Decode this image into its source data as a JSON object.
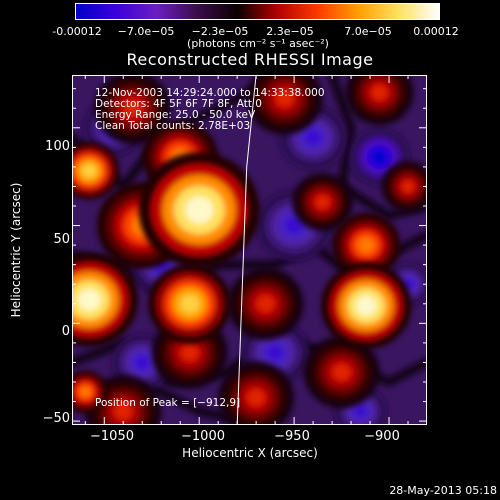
{
  "colorbar": {
    "ticks": [
      "-0.00012",
      "−7.0e−05",
      "−2.3e−05",
      "2.3e−05",
      "7.0e−05",
      "0.00012"
    ],
    "units": "(photons cm⁻² s⁻¹ asec⁻²)",
    "colors": [
      "#0000c8",
      "#3c00dc",
      "#6a1fbf",
      "#3a0d4a",
      "#0a0000",
      "#b40000",
      "#ff3a00",
      "#ffa000",
      "#ffe060",
      "#ffffff"
    ]
  },
  "chart_data": {
    "type": "heatmap",
    "title": "Reconstructed RHESSI Image",
    "xlabel": "Heliocentric X (arcsec)",
    "ylabel": "Heliocentric Y (arcsec)",
    "xlim": [
      -1067,
      -880
    ],
    "ylim": [
      -52,
      127
    ],
    "x_ticks": [
      "−1050",
      "−1000",
      "−950",
      "−900"
    ],
    "y_ticks": [
      "100",
      "50",
      "0",
      "−50"
    ],
    "x_tick_values": [
      -1050,
      -1000,
      -950,
      -900
    ],
    "y_tick_values": [
      100,
      50,
      0,
      -50
    ],
    "color_range": [
      -0.00012,
      0.00012
    ],
    "limb_line": [
      [
        -970,
        127
      ],
      [
        -975,
        80
      ],
      [
        -980,
        -52
      ]
    ],
    "sources": [
      {
        "x": -1000,
        "y": 58,
        "value": 0.000115,
        "r": 16
      },
      {
        "x": -1010,
        "y": 85,
        "value": 8e-05,
        "r": 10
      },
      {
        "x": -1058,
        "y": 12,
        "value": 0.00011,
        "r": 13
      },
      {
        "x": -1058,
        "y": 78,
        "value": 8.5e-05,
        "r": 8
      },
      {
        "x": -1005,
        "y": 10,
        "value": 9e-05,
        "r": 11
      },
      {
        "x": -1030,
        "y": 50,
        "value": 7e-05,
        "r": 12
      },
      {
        "x": -912,
        "y": 9,
        "value": 0.00012,
        "r": 12
      },
      {
        "x": -912,
        "y": 40,
        "value": 7e-05,
        "r": 9
      },
      {
        "x": -925,
        "y": -25,
        "value": 5e-05,
        "r": 10
      },
      {
        "x": -965,
        "y": 10,
        "value": 5e-05,
        "r": 10
      },
      {
        "x": -970,
        "y": -38,
        "value": 6e-05,
        "r": 10
      },
      {
        "x": -1040,
        "y": -45,
        "value": 5e-05,
        "r": 10
      },
      {
        "x": -955,
        "y": 115,
        "value": 5e-05,
        "r": 10
      },
      {
        "x": -890,
        "y": 70,
        "value": 6e-05,
        "r": 7
      },
      {
        "x": -1060,
        "y": -35,
        "value": 7e-05,
        "r": 6
      },
      {
        "x": -905,
        "y": 118,
        "value": 6e-05,
        "r": 9
      },
      {
        "x": -1005,
        "y": -15,
        "value": 4e-05,
        "r": 10
      },
      {
        "x": -935,
        "y": 62,
        "value": 4e-05,
        "r": 8
      },
      {
        "x": -1035,
        "y": 110,
        "value": 3e-05,
        "r": 10
      },
      {
        "x": -940,
        "y": 95,
        "value": -9e-05,
        "r": 9
      },
      {
        "x": -905,
        "y": 85,
        "value": -0.0001,
        "r": 8
      },
      {
        "x": -915,
        "y": -45,
        "value": -8e-05,
        "r": 7
      },
      {
        "x": -890,
        "y": 20,
        "value": -7e-05,
        "r": 6
      },
      {
        "x": -950,
        "y": 50,
        "value": -6e-05,
        "r": 10
      },
      {
        "x": -1045,
        "y": 100,
        "value": -6e-05,
        "r": 8
      },
      {
        "x": -1020,
        "y": 30,
        "value": -5e-05,
        "r": 8
      },
      {
        "x": -960,
        "y": -15,
        "value": -5e-05,
        "r": 9
      },
      {
        "x": -1030,
        "y": -20,
        "value": -6e-05,
        "r": 8
      }
    ],
    "annotations": [
      "12-Nov-2003 14:29:24.000 to 14:33:38.000",
      "Detectors: 4F 5F 6F 7F 8F, Att 0",
      "Energy Range: 25.0 - 50.0 keV",
      "Clean     Total counts: 2.78E+03"
    ],
    "peak_label": "Position of Peak = [−912,9]"
  },
  "datestamp": "28-May-2013 05:18"
}
